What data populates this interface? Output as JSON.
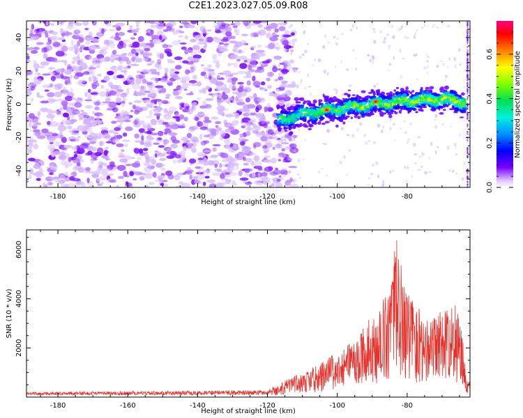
{
  "title": "C2E1.2023.027.05.09.R08",
  "chart_data": [
    {
      "type": "heatmap",
      "xlabel": "Height of straight line (km)",
      "ylabel": "Frequency (Hz)",
      "xlim": [
        -189,
        -62
      ],
      "ylim": [
        -50,
        50
      ],
      "xticks": [
        "-180",
        "-160",
        "-140",
        "-120",
        "-100",
        "-80"
      ],
      "yticks": [
        "-40",
        "-20",
        "0",
        "20",
        "40"
      ],
      "signal_ridge": {
        "x": [
          -117,
          -110,
          -100,
          -90,
          -80,
          -70,
          -63
        ],
        "frequency": [
          -10,
          -6,
          -3,
          0,
          2,
          3,
          1
        ],
        "peak_x": -89,
        "peak_frequency": 1.5
      },
      "noise_start_x": -189,
      "noise_end_x": -118,
      "colorbar": {
        "label": "Normalized spectral amplitude",
        "range": [
          0,
          0.75
        ],
        "ticks": [
          "0.0",
          "0.2",
          "0.4",
          "0.6"
        ]
      }
    },
    {
      "type": "line",
      "xlabel": "Height of straight line (km)",
      "ylabel": "SNR (10 * v/v)",
      "xlim": [
        -189,
        -62
      ],
      "ylim": [
        0,
        6800
      ],
      "xticks": [
        "-180",
        "-160",
        "-140",
        "-120",
        "-100",
        "-80"
      ],
      "yticks": [
        "2000",
        "4000",
        "6000"
      ],
      "series_color": "#e8302a",
      "envelope": {
        "x": [
          -189,
          -120,
          -116,
          -110,
          -105,
          -100,
          -95,
          -90,
          -85,
          -83,
          -80,
          -75,
          -70,
          -65,
          -63
        ],
        "y": [
          120,
          200,
          600,
          1000,
          1400,
          1900,
          2400,
          3400,
          4800,
          6700,
          4500,
          3200,
          3600,
          3800,
          800
        ]
      }
    }
  ]
}
